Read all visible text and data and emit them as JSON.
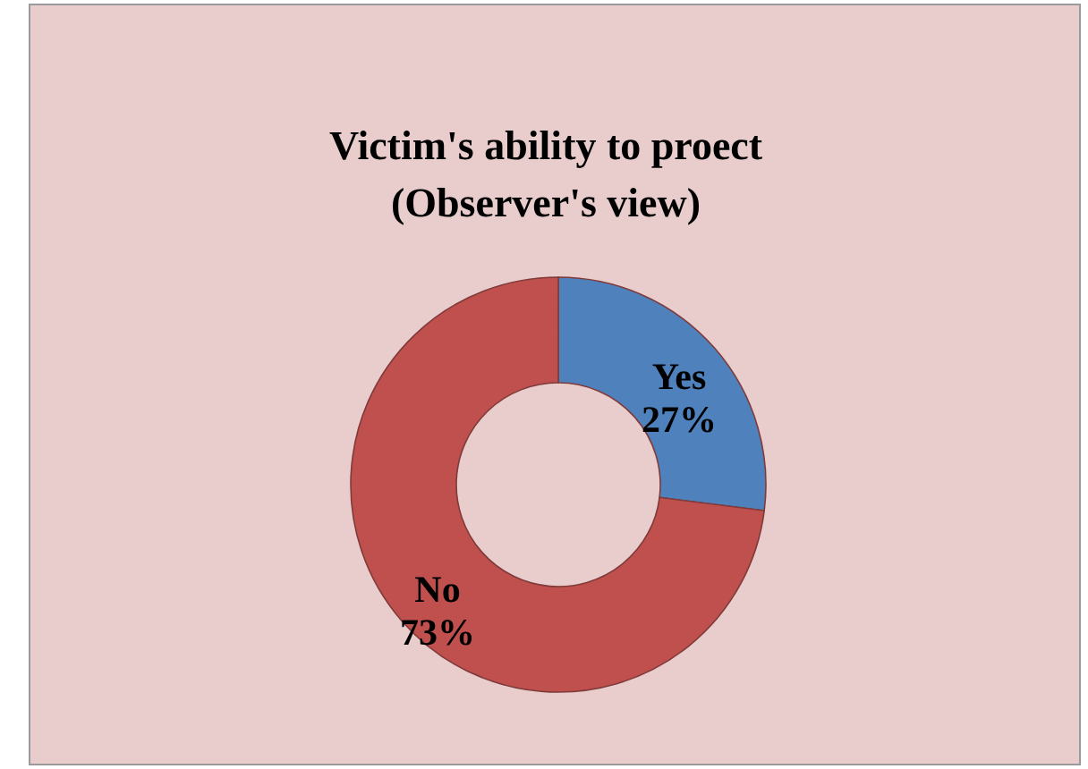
{
  "chart_data": {
    "type": "donut",
    "title": "Victim's ability to proect\n(Observer's view)",
    "categories": [
      "Yes",
      "No"
    ],
    "values": [
      27,
      73
    ],
    "value_labels": [
      "27%",
      "73%"
    ],
    "colors": [
      "#4f81bd",
      "#c0504d"
    ],
    "legend": false
  }
}
